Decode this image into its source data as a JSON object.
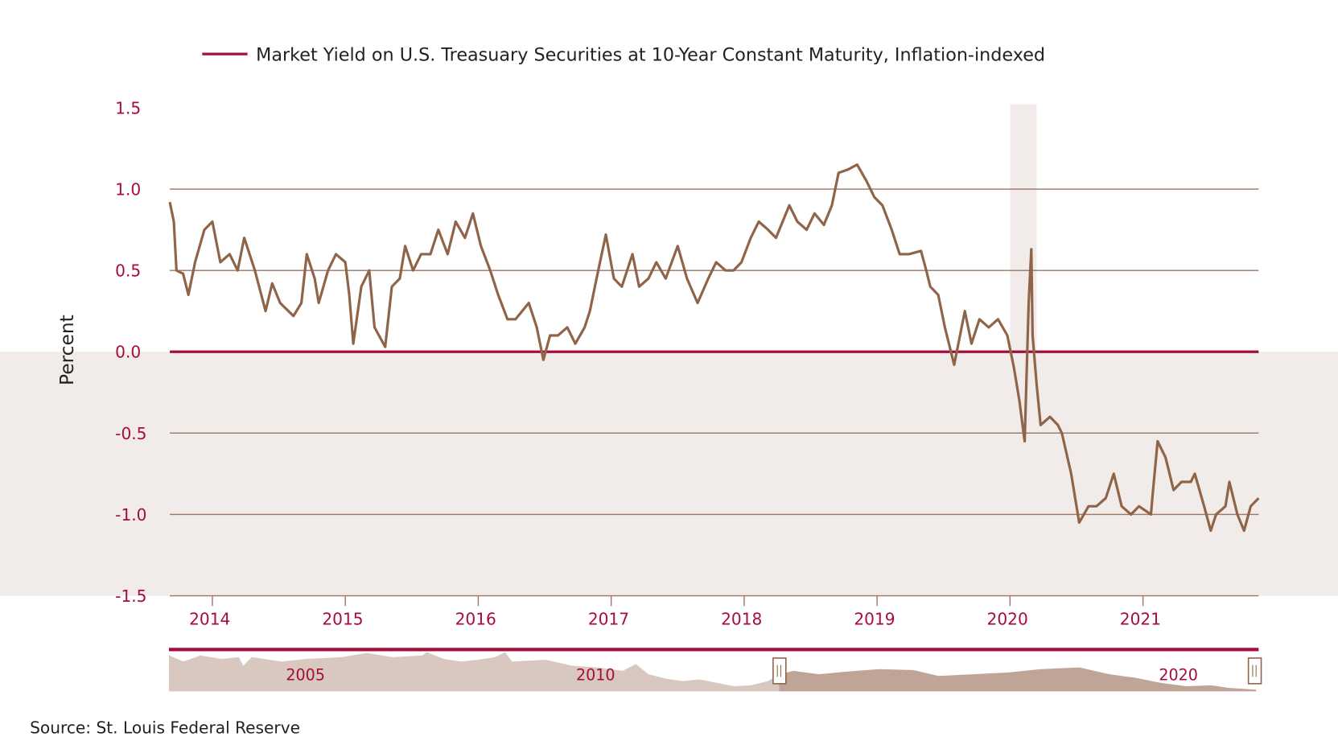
{
  "chart_data": {
    "type": "line",
    "legend": {
      "label": "Market Yield on U.S. Treasuary Securities at 10-Year Constant Maturity, Inflation-indexed",
      "placement": "top"
    },
    "ylabel": "Percent",
    "xlabel": "",
    "ylim": [
      -1.5,
      1.5
    ],
    "xlim": [
      2013.68,
      2021.87
    ],
    "yticks": [
      "1.5",
      "1.0",
      "0.5",
      "0.0",
      "-0.5",
      "-1.0",
      "-1.5"
    ],
    "ytick_values": [
      1.5,
      1.0,
      0.5,
      0.0,
      -0.5,
      -1.0,
      -1.5
    ],
    "xticks": [
      "2014",
      "2015",
      "2016",
      "2017",
      "2018",
      "2019",
      "2020",
      "2021"
    ],
    "grid": true,
    "recession_band": [
      2020.0,
      2020.2
    ],
    "negative_shading": true,
    "colors": {
      "line": "#8f6449",
      "zero_line": "#a50d3b",
      "grid": "#9a7560",
      "shade": "#f1ecea",
      "tick_text": "#a50d3b"
    },
    "series": [
      {
        "x": [
          2013.68,
          2013.71,
          2013.73,
          2013.78,
          2013.82,
          2013.87,
          2013.94,
          2014.0,
          2014.06,
          2014.13,
          2014.19,
          2014.24,
          2014.32,
          2014.4,
          2014.45,
          2014.51,
          2014.61,
          2014.67,
          2014.71,
          2014.77,
          2014.8,
          2014.87,
          2014.93,
          2015.0,
          2015.03,
          2015.06,
          2015.12,
          2015.18,
          2015.22,
          2015.3,
          2015.35,
          2015.41,
          2015.45,
          2015.51,
          2015.57,
          2015.64,
          2015.7,
          2015.77,
          2015.83,
          2015.9,
          2015.96,
          2016.02,
          2016.09,
          2016.15,
          2016.22,
          2016.28,
          2016.38,
          2016.44,
          2016.49,
          2016.54,
          2016.6,
          2016.67,
          2016.73,
          2016.8,
          2016.84,
          2016.89,
          2016.96,
          2017.02,
          2017.08,
          2017.16,
          2017.21,
          2017.28,
          2017.34,
          2017.41,
          2017.5,
          2017.57,
          2017.65,
          2017.73,
          2017.79,
          2017.86,
          2017.92,
          2017.98,
          2018.05,
          2018.11,
          2018.18,
          2018.24,
          2018.34,
          2018.4,
          2018.47,
          2018.53,
          2018.6,
          2018.66,
          2018.71,
          2018.78,
          2018.85,
          2018.92,
          2018.98,
          2019.04,
          2019.11,
          2019.17,
          2019.24,
          2019.33,
          2019.37,
          2019.4,
          2019.46,
          2019.51,
          2019.58,
          2019.66,
          2019.71,
          2019.77,
          2019.84,
          2019.91,
          2019.98,
          2020.03,
          2020.07,
          2020.11,
          2020.14,
          2020.16,
          2020.17,
          2020.2,
          2020.23,
          2020.3,
          2020.36,
          2020.39,
          2020.46,
          2020.52,
          2020.59,
          2020.65,
          2020.72,
          2020.78,
          2020.84,
          2020.91,
          2020.97,
          2021.06,
          2021.07,
          2021.11,
          2021.17,
          2021.23,
          2021.29,
          2021.36,
          2021.39,
          2021.46,
          2021.51,
          2021.55,
          2021.62,
          2021.65,
          2021.71,
          2021.76,
          2021.81,
          2021.87
        ],
        "y": [
          0.92,
          0.8,
          0.5,
          0.48,
          0.35,
          0.55,
          0.75,
          0.8,
          0.55,
          0.6,
          0.5,
          0.7,
          0.5,
          0.25,
          0.42,
          0.3,
          0.22,
          0.3,
          0.6,
          0.45,
          0.3,
          0.5,
          0.6,
          0.55,
          0.35,
          0.05,
          0.4,
          0.5,
          0.15,
          0.03,
          0.4,
          0.45,
          0.65,
          0.5,
          0.6,
          0.6,
          0.75,
          0.6,
          0.8,
          0.7,
          0.85,
          0.65,
          0.5,
          0.35,
          0.2,
          0.2,
          0.3,
          0.15,
          -0.05,
          0.1,
          0.1,
          0.15,
          0.05,
          0.15,
          0.25,
          0.45,
          0.72,
          0.45,
          0.4,
          0.6,
          0.4,
          0.45,
          0.55,
          0.45,
          0.65,
          0.45,
          0.3,
          0.45,
          0.55,
          0.5,
          0.5,
          0.55,
          0.7,
          0.8,
          0.75,
          0.7,
          0.9,
          0.8,
          0.75,
          0.85,
          0.78,
          0.9,
          1.1,
          1.12,
          1.15,
          1.05,
          0.95,
          0.9,
          0.75,
          0.6,
          0.6,
          0.62,
          0.5,
          0.4,
          0.35,
          0.15,
          -0.08,
          0.25,
          0.05,
          0.2,
          0.15,
          0.2,
          0.1,
          -0.1,
          -0.3,
          -0.55,
          0.3,
          0.63,
          0.1,
          -0.2,
          -0.45,
          -0.4,
          -0.45,
          -0.5,
          -0.75,
          -1.05,
          -0.95,
          -0.95,
          -0.9,
          -0.75,
          -0.95,
          -1.0,
          -0.95,
          -1.0,
          -0.9,
          -0.55,
          -0.65,
          -0.85,
          -0.8,
          -0.8,
          -0.75,
          -0.95,
          -1.1,
          -1.0,
          -0.95,
          -0.8,
          -1.0,
          -1.1,
          -0.95,
          -0.9
        ]
      }
    ]
  },
  "navigator": {
    "labels": [
      "2005",
      "2010",
      "2020"
    ]
  },
  "source": "Source: St. Louis Federal Reserve"
}
